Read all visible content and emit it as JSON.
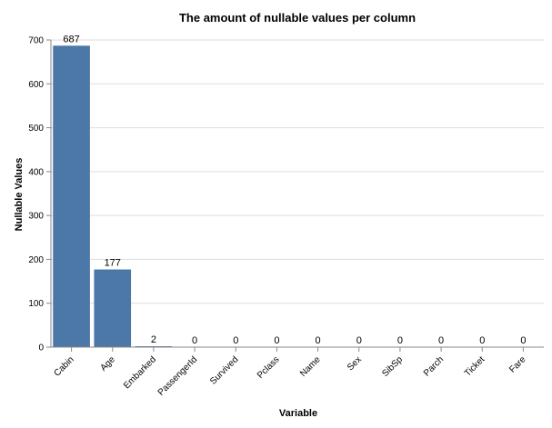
{
  "chart_data": {
    "type": "bar",
    "title": "The amount of nullable values per column",
    "xlabel": "Variable",
    "ylabel": "Nullable Values",
    "categories": [
      "Cabin",
      "Age",
      "Embarked",
      "PassengerId",
      "Survived",
      "Pclass",
      "Name",
      "Sex",
      "SibSp",
      "Parch",
      "Ticket",
      "Fare"
    ],
    "values": [
      687,
      177,
      2,
      0,
      0,
      0,
      0,
      0,
      0,
      0,
      0,
      0
    ],
    "ylim": [
      0,
      700
    ],
    "yticks": [
      0,
      100,
      200,
      300,
      400,
      500,
      600,
      700
    ],
    "grid": true,
    "bar_color": "#4c78a8"
  }
}
